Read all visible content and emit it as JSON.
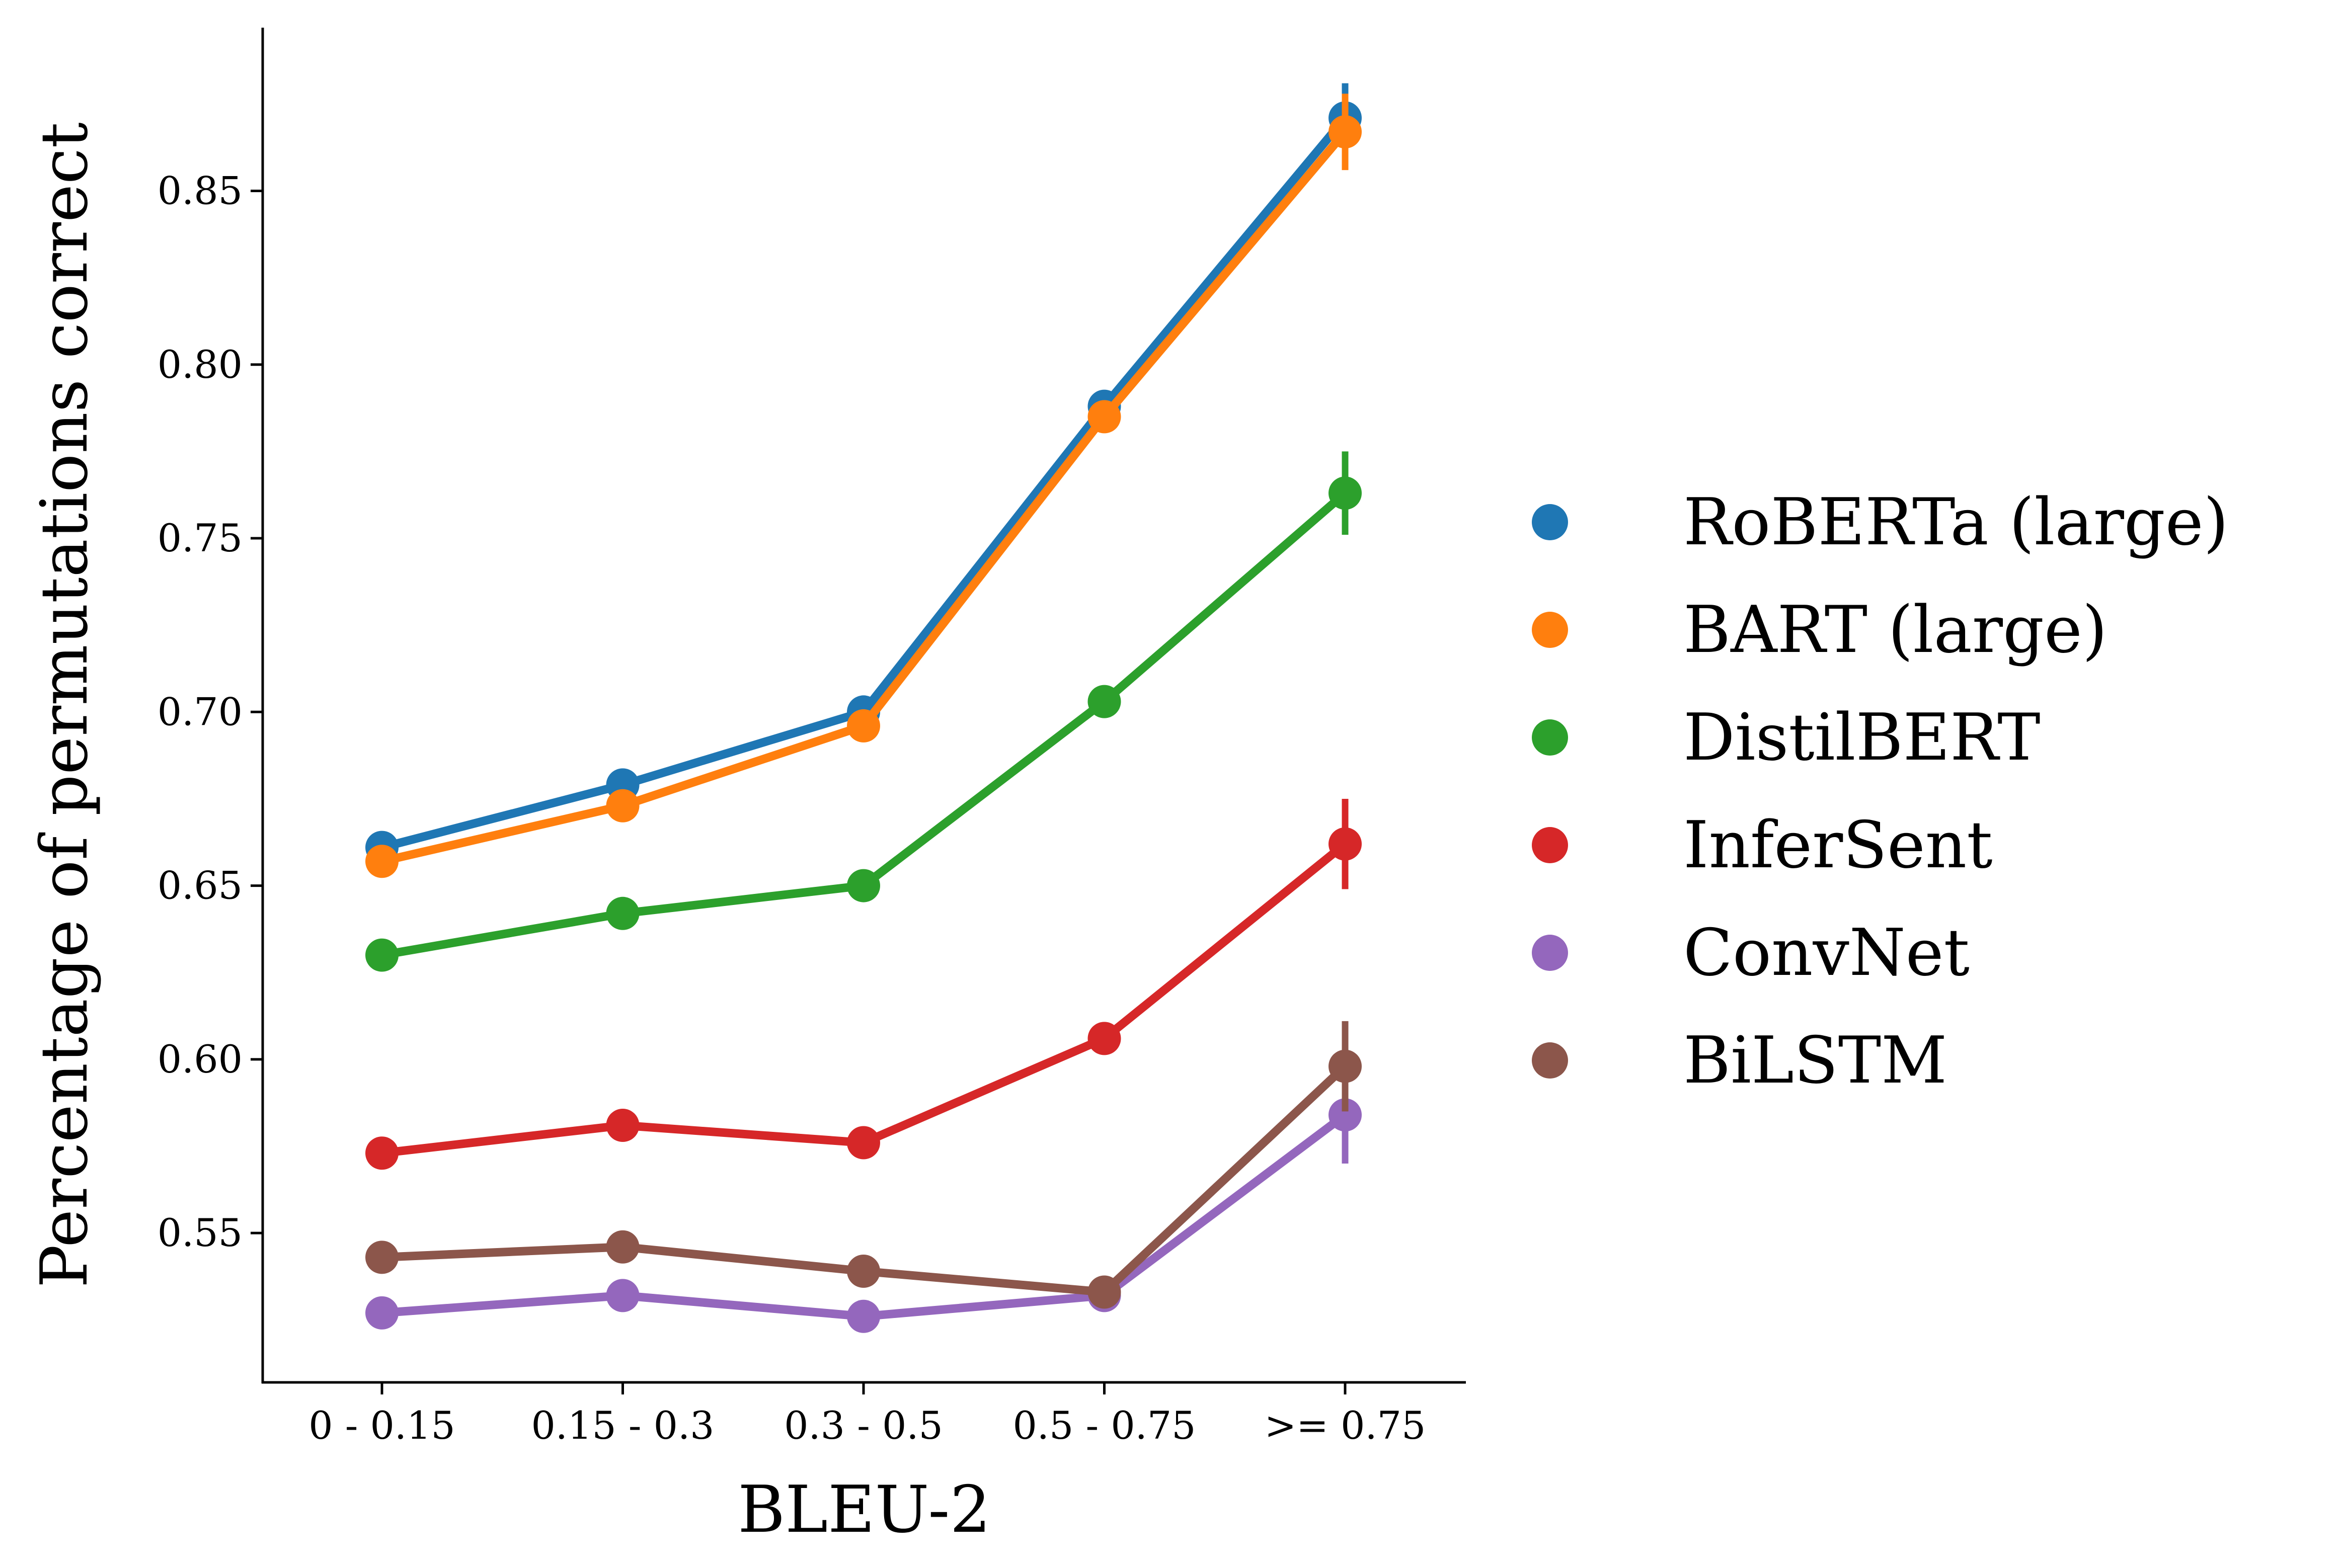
{
  "chart_data": {
    "type": "line",
    "title": "",
    "xlabel": "BLEU-2",
    "ylabel": "Percentage of permutations correct",
    "categories": [
      "0 - 0.15",
      "0.15 - 0.3",
      "0.3 - 0.5",
      "0.5 - 0.75",
      ">= 0.75"
    ],
    "ylim": [
      0.507,
      0.897
    ],
    "yticks": [
      0.55,
      0.6,
      0.65,
      0.7,
      0.75,
      0.8,
      0.85
    ],
    "ytick_labels": [
      "0.55",
      "0.60",
      "0.65",
      "0.70",
      "0.75",
      "0.80",
      "0.85"
    ],
    "grid": false,
    "legend_position": "right",
    "series": [
      {
        "name": "RoBERTa (large)",
        "color": "#1f77b4",
        "values": [
          0.661,
          0.679,
          0.7,
          0.788,
          0.871
        ],
        "errors": [
          0.002,
          0.002,
          0.003,
          0.004,
          0.01
        ]
      },
      {
        "name": "BART (large)",
        "color": "#ff7f0e",
        "values": [
          0.657,
          0.673,
          0.696,
          0.785,
          0.867
        ],
        "errors": [
          0.002,
          0.002,
          0.003,
          0.004,
          0.011
        ]
      },
      {
        "name": "DistilBERT",
        "color": "#2ca02c",
        "values": [
          0.63,
          0.642,
          0.65,
          0.703,
          0.763
        ],
        "errors": [
          0.002,
          0.002,
          0.003,
          0.004,
          0.012
        ]
      },
      {
        "name": "InferSent",
        "color": "#d62728",
        "values": [
          0.573,
          0.581,
          0.576,
          0.606,
          0.662
        ],
        "errors": [
          0.002,
          0.002,
          0.003,
          0.004,
          0.013
        ]
      },
      {
        "name": "ConvNet",
        "color": "#9467bd",
        "values": [
          0.527,
          0.532,
          0.526,
          0.532,
          0.584
        ],
        "errors": [
          0.002,
          0.002,
          0.003,
          0.004,
          0.014
        ]
      },
      {
        "name": "BiLSTM",
        "color": "#8c564b",
        "values": [
          0.543,
          0.546,
          0.539,
          0.533,
          0.598
        ],
        "errors": [
          0.002,
          0.002,
          0.003,
          0.004,
          0.013
        ]
      }
    ]
  }
}
